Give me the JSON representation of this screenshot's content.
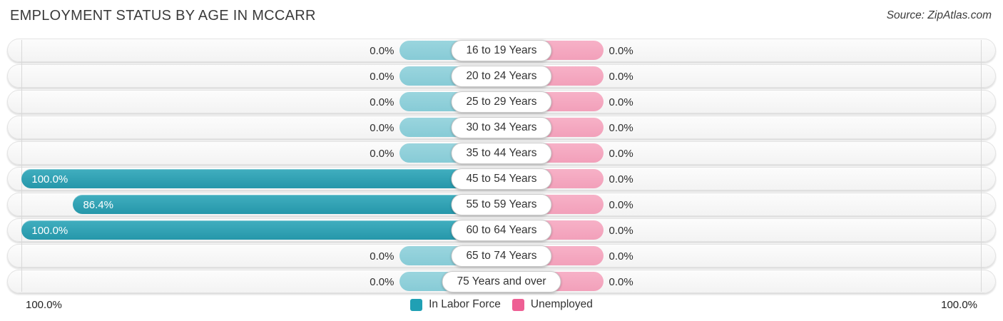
{
  "header": {
    "title": "EMPLOYMENT STATUS BY AGE IN MCCARR",
    "source": "Source: ZipAtlas.com"
  },
  "chart_data": {
    "type": "bar",
    "variant": "diverging-horizontal-butterfly",
    "title": "Employment Status by Age in McCarr",
    "categories": [
      "16 to 19 Years",
      "20 to 24 Years",
      "25 to 29 Years",
      "30 to 34 Years",
      "35 to 44 Years",
      "45 to 54 Years",
      "55 to 59 Years",
      "60 to 64 Years",
      "65 to 74 Years",
      "75 Years and over"
    ],
    "series": [
      {
        "name": "In Labor Force",
        "side": "left",
        "color": "#20a0b4",
        "zero_stub_color": "#8fd0da",
        "values": [
          0.0,
          0.0,
          0.0,
          0.0,
          0.0,
          100.0,
          86.4,
          100.0,
          0.0,
          0.0
        ]
      },
      {
        "name": "Unemployed",
        "side": "right",
        "color": "#ee5f94",
        "zero_stub_color": "#f5a8c1",
        "values": [
          0.0,
          0.0,
          0.0,
          0.0,
          0.0,
          0.0,
          0.0,
          0.0,
          0.0,
          0.0
        ]
      }
    ],
    "value_suffix": "%",
    "axis": {
      "left_max_label": "100.0%",
      "right_max_label": "100.0%",
      "min": 0,
      "max": 100
    },
    "legend_position": "bottom-center",
    "grid": "edge-gridlines-only"
  }
}
